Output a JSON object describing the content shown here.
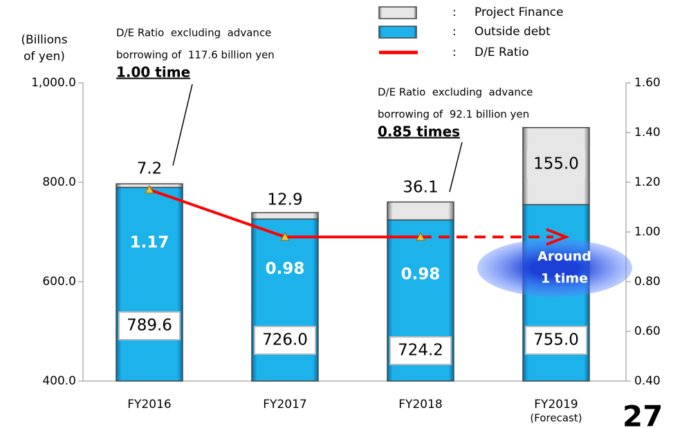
{
  "chart_data": {
    "type": "bar",
    "categories": [
      "FY2016",
      "FY2017",
      "FY2018",
      "FY2019"
    ],
    "category_note": "(Forecast)",
    "y_label_lines": [
      "(Billions",
      "of yen)"
    ],
    "series": [
      {
        "name": "Outside debt",
        "color": "#1eb2ea",
        "values": [
          789.6,
          726.0,
          724.2,
          755.0
        ],
        "value_labels": [
          "789.6",
          "726.0",
          "724.2",
          "755.0"
        ]
      },
      {
        "name": "Project Finance",
        "color": "#d9d9d9",
        "values": [
          7.2,
          12.9,
          36.1,
          155.0
        ],
        "value_labels": [
          "7.2",
          "12.9",
          "36.1",
          "155.0"
        ]
      },
      {
        "name": "D/E Ratio",
        "type": "line",
        "axis": "y2",
        "color": "#ff0000",
        "values": [
          1.17,
          0.98,
          0.98,
          null
        ],
        "value_labels": [
          "1.17",
          "0.98",
          "0.98",
          null
        ]
      }
    ],
    "forecast_arrow": {
      "value": 0.98
    },
    "legend_separator": ":",
    "ylim": [
      400,
      1000
    ],
    "yticks": [
      {
        "value": 400,
        "label": "400.0"
      },
      {
        "value": 600,
        "label": "600.0"
      },
      {
        "value": 800,
        "label": "800.0"
      },
      {
        "value": 1000,
        "label": "1,000.0"
      }
    ],
    "y2lim": [
      0.4,
      1.6
    ],
    "y2ticks": [
      {
        "value": 0.4,
        "label": "0.40"
      },
      {
        "value": 0.6,
        "label": "0.60"
      },
      {
        "value": 0.8,
        "label": "0.80"
      },
      {
        "value": 1.0,
        "label": "1.00"
      },
      {
        "value": 1.2,
        "label": "1.20"
      },
      {
        "value": 1.4,
        "label": "1.40"
      },
      {
        "value": 1.6,
        "label": "1.60"
      }
    ],
    "annotations": [
      {
        "lines": [
          "D/E Ratio  excluding  advance",
          "borrowing of  117.6 billion yen"
        ],
        "highlight": "1.00 time"
      },
      {
        "lines": [
          "D/E Ratio  excluding  advance",
          "borrowing of  92.1 billion yen"
        ],
        "highlight": "0.85 times"
      },
      {
        "lines": [
          "Around",
          "1 time"
        ]
      }
    ],
    "page_number": "27"
  }
}
